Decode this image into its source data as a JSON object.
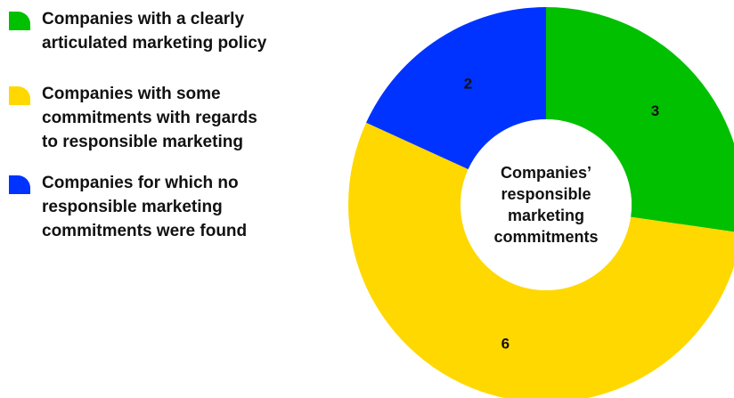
{
  "chart_data": {
    "type": "pie",
    "center_label": [
      "Companies’",
      "responsible",
      "marketing",
      "commitments"
    ],
    "slices": [
      {
        "label": "Companies with a clearly articulated marketing policy",
        "value": 3,
        "color": "#00c000"
      },
      {
        "label": "Companies with some commitments with regards to responsible marketing",
        "value": 6,
        "color": "#ffd800"
      },
      {
        "label": "Companies for which no responsible marketing commitments were found",
        "value": 2,
        "color": "#0033ff"
      }
    ],
    "legend": {
      "placement": "left",
      "items": [
        {
          "lines": [
            "Companies with a clearly",
            "articulated marketing policy"
          ],
          "color": "#00c000"
        },
        {
          "lines": [
            "Companies with some",
            "commitments with regards",
            "to responsible marketing"
          ],
          "color": "#ffd800"
        },
        {
          "lines": [
            "Companies for which no",
            "responsible marketing",
            "commitments were found"
          ],
          "color": "#0033ff"
        }
      ]
    }
  }
}
